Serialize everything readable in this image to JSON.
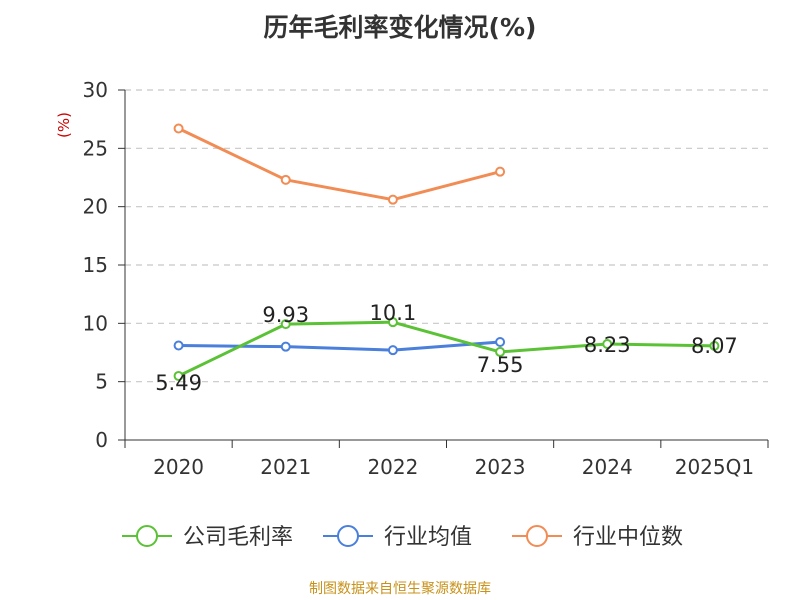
{
  "title": "历年毛利率变化情况(%)",
  "source": "制图数据来自恒生聚源数据库",
  "chart_data": {
    "type": "line",
    "title": "历年毛利率变化情况(%)",
    "ylabel": "(%)",
    "xlabel": "",
    "categories": [
      "2020",
      "2021",
      "2022",
      "2023",
      "2024",
      "2025Q1"
    ],
    "ylim": [
      0,
      30
    ],
    "yticks": [
      0,
      5,
      10,
      15,
      20,
      25,
      30
    ],
    "grid": true,
    "legend_position": "bottom",
    "series": [
      {
        "name": "公司毛利率",
        "color": "#5bc236",
        "values": [
          5.49,
          9.93,
          10.1,
          7.55,
          8.23,
          8.07
        ],
        "labels": [
          "5.49",
          "9.93",
          "10.1",
          "7.55",
          "8.23",
          "8.07"
        ]
      },
      {
        "name": "行业均值",
        "color": "#4a7fdc",
        "values": [
          8.1,
          8.0,
          7.7,
          8.4,
          null,
          null
        ]
      },
      {
        "name": "行业中位数",
        "color": "#f28c55",
        "values": [
          26.7,
          22.3,
          20.6,
          23.0,
          null,
          null
        ]
      }
    ]
  }
}
